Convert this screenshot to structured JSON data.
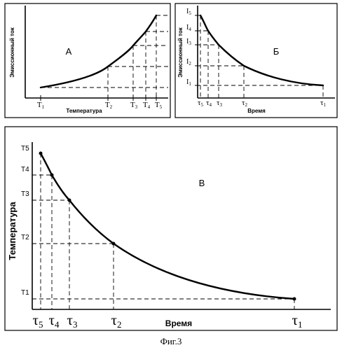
{
  "figure_caption": "Фиг.3",
  "panel_a": {
    "letter": "А",
    "x_label": "Температура",
    "y_label": "Эмиссионный ток",
    "x_ticks": [
      {
        "base": "T",
        "sub": "1"
      },
      {
        "base": "T",
        "sub": "2"
      },
      {
        "base": "T",
        "sub": "3"
      },
      {
        "base": "T",
        "sub": "4"
      },
      {
        "base": "T",
        "sub": "5"
      }
    ]
  },
  "panel_b": {
    "letter": "Б",
    "x_label": "Время",
    "y_label": "Эмиссионный ток",
    "y_ticks": [
      {
        "base": "I",
        "sub": "5"
      },
      {
        "base": "I",
        "sub": "4"
      },
      {
        "base": "I",
        "sub": "3"
      },
      {
        "base": "I",
        "sub": "2"
      },
      {
        "base": "I",
        "sub": "1"
      }
    ],
    "x_ticks": [
      {
        "base": "τ",
        "sub": "5"
      },
      {
        "base": "τ",
        "sub": "4"
      },
      {
        "base": "τ",
        "sub": "3"
      },
      {
        "base": "τ",
        "sub": "2"
      },
      {
        "base": "τ",
        "sub": "1"
      }
    ]
  },
  "panel_v": {
    "letter": "В",
    "x_label": "Время",
    "y_label": "Температура",
    "y_ticks": [
      "T5",
      "T4",
      "T3",
      "T2",
      "T1"
    ],
    "x_ticks": [
      {
        "base": "τ",
        "sub": "5"
      },
      {
        "base": "τ",
        "sub": "4"
      },
      {
        "base": "τ",
        "sub": "3"
      },
      {
        "base": "τ",
        "sub": "2"
      },
      {
        "base": "τ",
        "sub": "1"
      }
    ]
  }
}
